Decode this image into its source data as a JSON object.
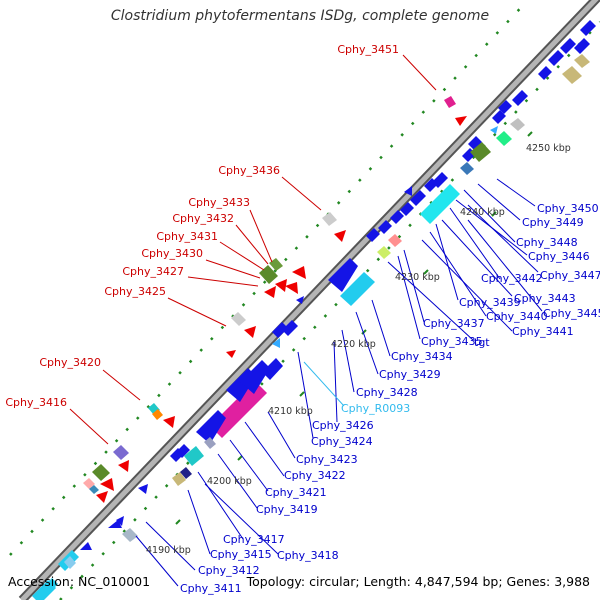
{
  "title": "Clostridium phytofermentans ISDg, complete genome",
  "footer": {
    "accession": "Accession: NC_010001",
    "summary": "Topology: circular; Length: 4,847,594 bp; Genes: 3,988"
  },
  "colors": {
    "backbone": "#aaaaaa",
    "backbone_edge": "#555555",
    "gene": "#1414e6",
    "label_plus": "#cc0000",
    "label_minus": "#0000cc",
    "label_rna": "#33bbee",
    "tick": "#228822"
  },
  "scale_ticks": [
    "4190 kbp",
    "4200 kbp",
    "4210 kbp",
    "4220 kbp",
    "4230 kbp",
    "4240 kbp",
    "4250 kbp"
  ],
  "labels_plus": [
    "Cphy_3451",
    "Cphy_3436",
    "Cphy_3433",
    "Cphy_3432",
    "Cphy_3431",
    "Cphy_3430",
    "Cphy_3427",
    "Cphy_3425",
    "Cphy_3420",
    "Cphy_3416"
  ],
  "labels_minus": [
    "Cphy_3450",
    "Cphy_3449",
    "Cphy_3448",
    "Cphy_3446",
    "Cphy_3447",
    "Cphy_3442",
    "Cphy_3443",
    "Cphy_3445",
    "Cphy_3439",
    "Cphy_3440",
    "Cphy_3441",
    "Cphy_3437",
    "Cphy_3435",
    "tgt",
    "Cphy_3434",
    "Cphy_3429",
    "Cphy_3428",
    "Cphy_3426",
    "Cphy_3424",
    "Cphy_3423",
    "Cphy_3422",
    "Cphy_3421",
    "Cphy_3419",
    "Cphy_3417",
    "Cphy_3418",
    "Cphy_3415",
    "Cphy_3412",
    "Cphy_3411"
  ],
  "labels_rna": [
    "Cphy_R0093"
  ]
}
